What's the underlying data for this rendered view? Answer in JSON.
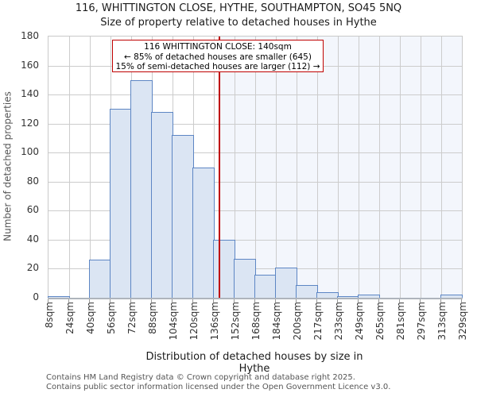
{
  "title": "116, WHITTINGTON CLOSE, HYTHE, SOUTHAMPTON, SO45 5NQ",
  "subtitle": "Size of property relative to detached houses in Hythe",
  "annotation": {
    "line1": "116 WHITTINGTON CLOSE: 140sqm",
    "line2": "← 85% of detached houses are smaller (645)",
    "line3": "15% of semi-detached houses are larger (112) →",
    "marker_sqm": 140
  },
  "footer": {
    "line1": "Contains HM Land Registry data © Crown copyright and database right 2025.",
    "line2": "Contains public sector information licensed under the Open Government Licence v3.0."
  },
  "colors": {
    "bar_fill": "#dbe5f3",
    "bar_border": "#5d86c4",
    "marker_red": "#bf0000",
    "gridline": "#cccccc",
    "shaded_region": "#f3f6fc",
    "axis_line": "#aeb4bc",
    "footer_text": "#555555"
  },
  "chart_data": {
    "type": "bar",
    "title": "116, WHITTINGTON CLOSE, HYTHE, SOUTHAMPTON, SO45 5NQ",
    "subtitle": "Size of property relative to detached houses in Hythe",
    "xlabel": "Distribution of detached houses by size in Hythe",
    "ylabel": "Number of detached properties",
    "bin_edges_sqm": [
      8,
      24,
      40,
      56,
      72,
      88,
      104,
      120,
      136,
      152,
      168,
      184,
      200,
      217,
      233,
      249,
      265,
      281,
      297,
      313,
      329
    ],
    "tick_labels": [
      "8sqm",
      "24sqm",
      "40sqm",
      "56sqm",
      "72sqm",
      "88sqm",
      "104sqm",
      "120sqm",
      "136sqm",
      "152sqm",
      "168sqm",
      "184sqm",
      "200sqm",
      "217sqm",
      "233sqm",
      "249sqm",
      "265sqm",
      "281sqm",
      "297sqm",
      "313sqm",
      "329sqm"
    ],
    "values": [
      1,
      0,
      26,
      130,
      150,
      128,
      112,
      90,
      40,
      27,
      16,
      21,
      9,
      4,
      1,
      2,
      0,
      0,
      0,
      2
    ],
    "ylim": [
      0,
      180
    ],
    "ytick_step": 20,
    "grid": true,
    "marker_x_sqm": 140,
    "shaded_region": "right of marker (sizes larger than 140sqm)",
    "legend": "none"
  }
}
